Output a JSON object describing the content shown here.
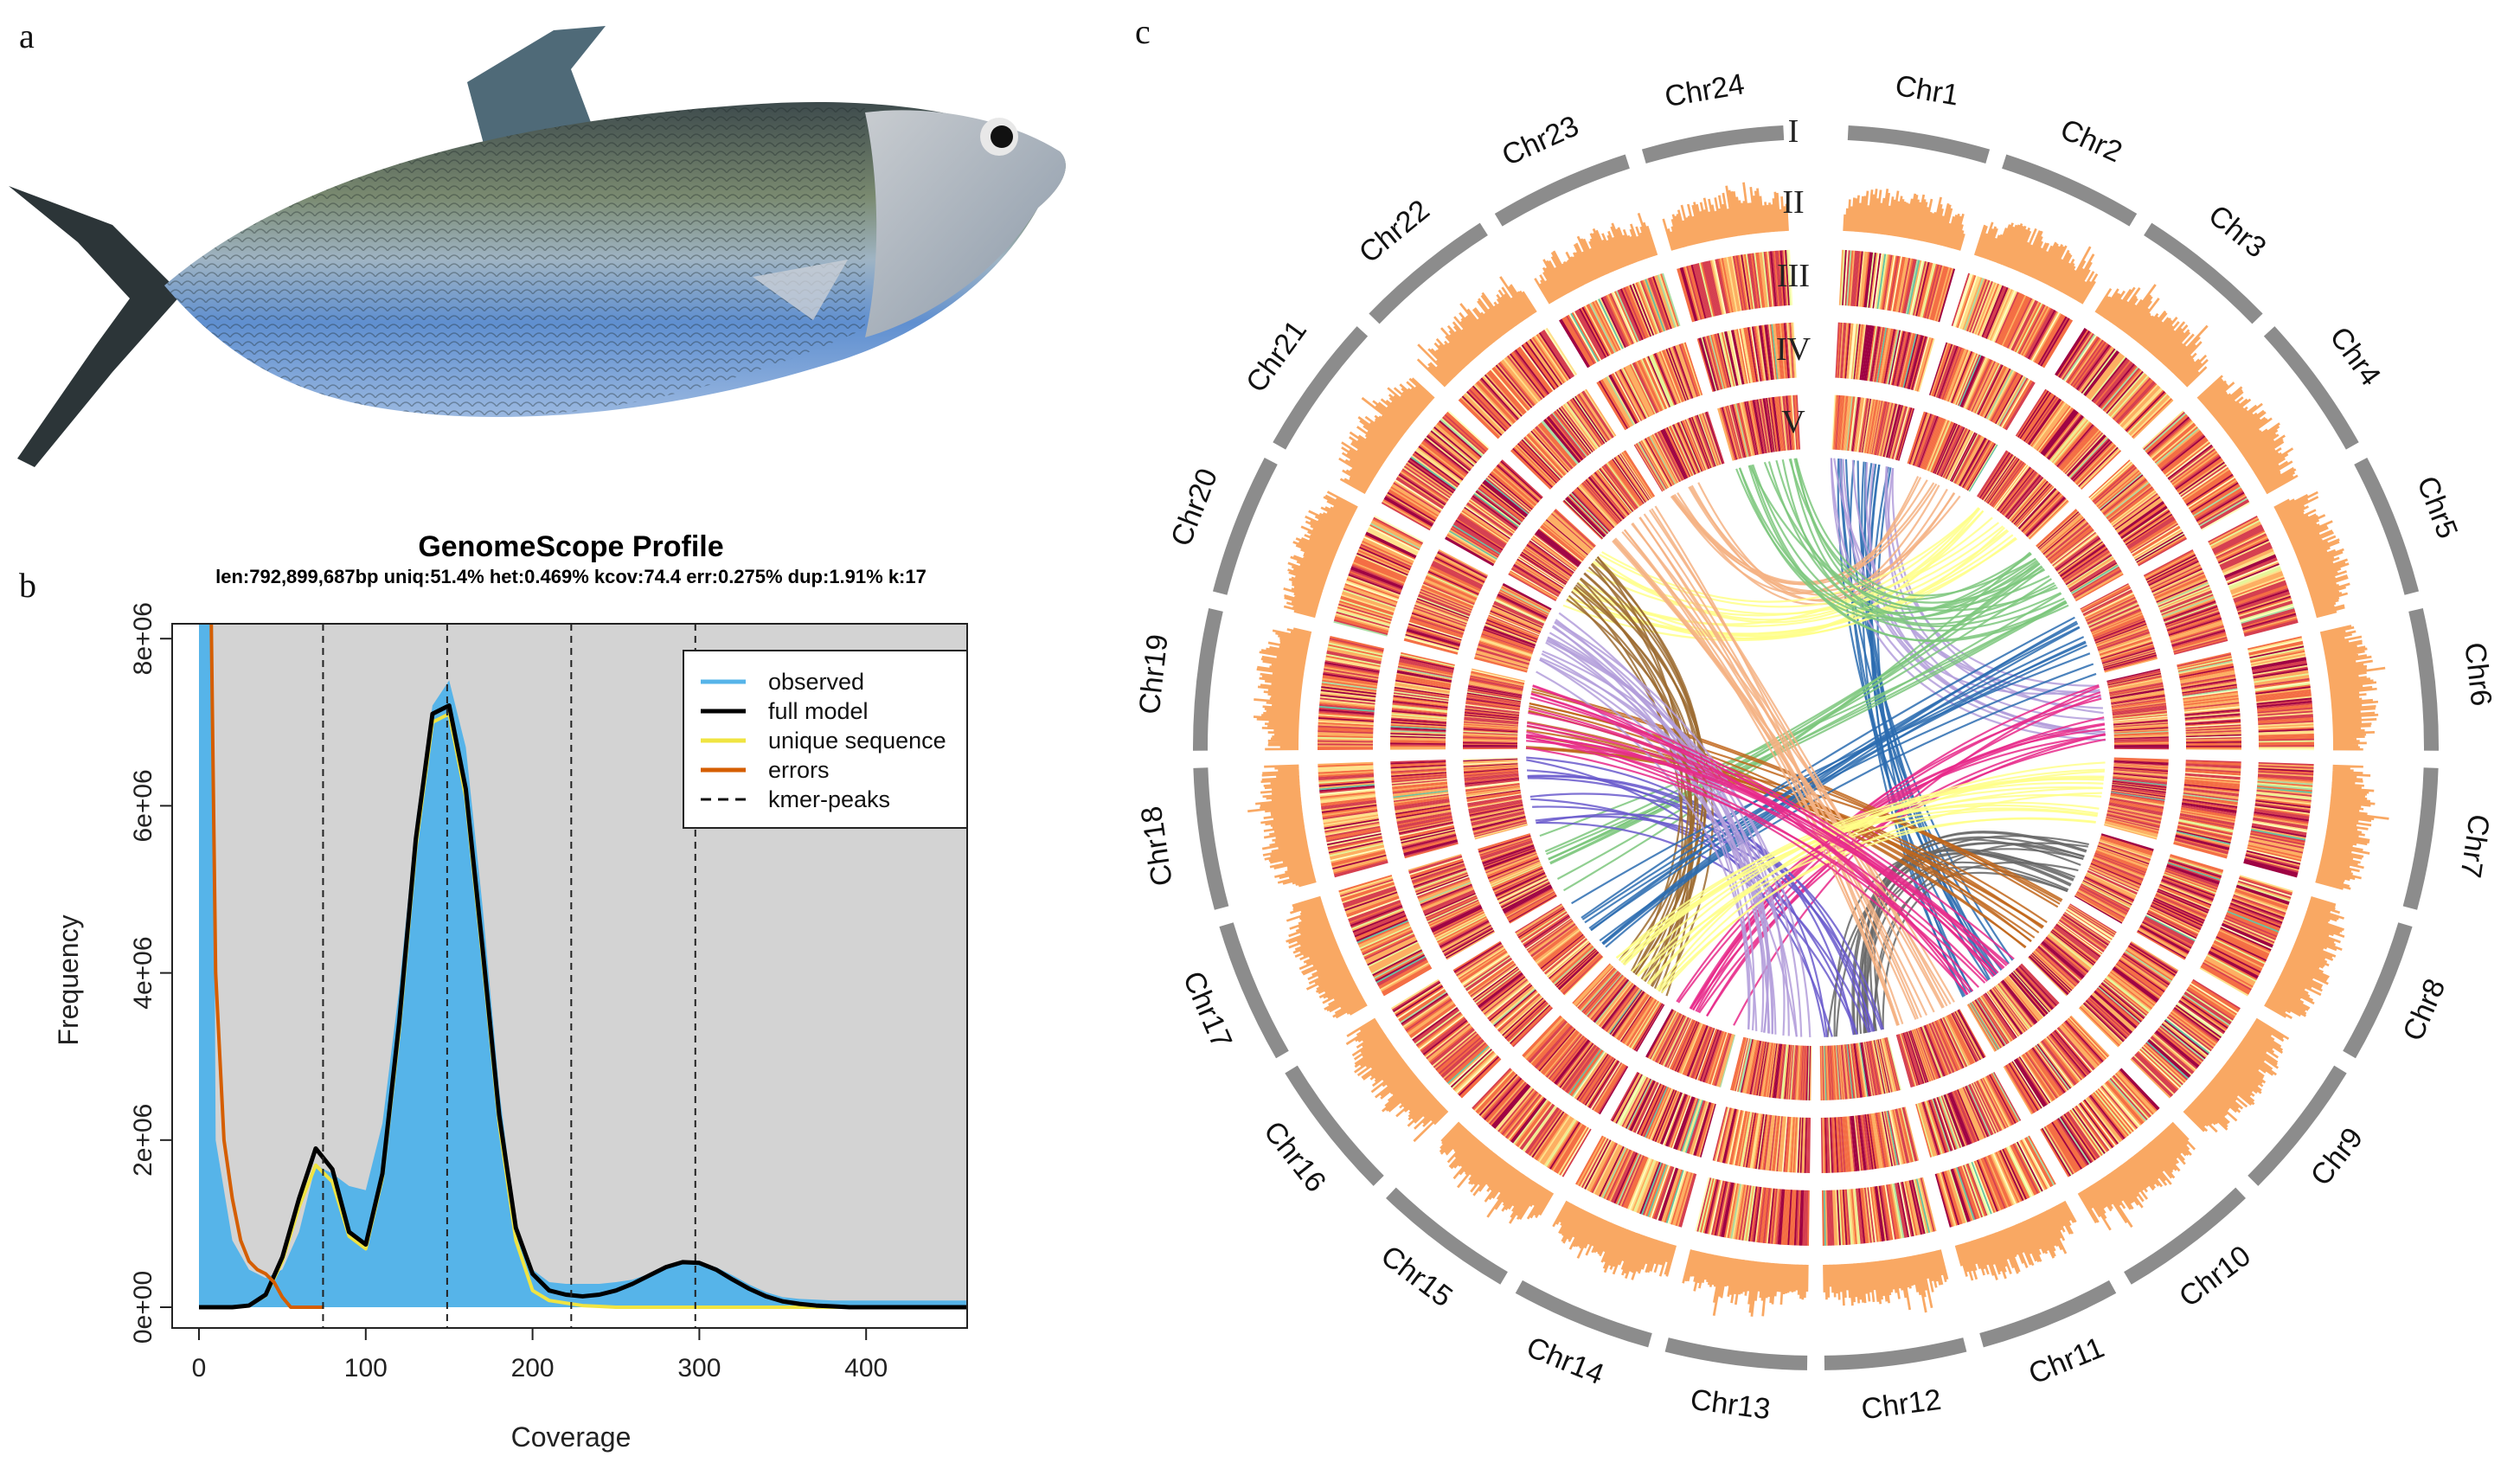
{
  "panels": {
    "a": "a",
    "b": "b",
    "c": "c"
  },
  "colors": {
    "observed": "#56b4e9",
    "full_model": "#000000",
    "unique": "#f0e442",
    "errors": "#d55e00",
    "plot_bg": "#d3d3d3",
    "histogram": "#f9a863",
    "chromosome_ring": "#8c8c8c",
    "heat_palette": [
      "#9e0142",
      "#d53e4f",
      "#f46d43",
      "#fdae61",
      "#fee08b",
      "#ffffbf",
      "#e6f598",
      "#abdda4",
      "#66c2a5"
    ],
    "link_palette": [
      "#2b6cb0",
      "#b39ddb",
      "#f4b183",
      "#ffff8a",
      "#7dc77d",
      "#e7298a",
      "#666666",
      "#c1661b",
      "#6a5acd",
      "#9c6b30"
    ]
  },
  "chart_data": {
    "type": "line",
    "title": "GenomeScope Profile",
    "subtitle": "len:792,899,687bp uniq:51.4%  het:0.469% kcov:74.4 err:0.275%  dup:1.91%  k:17",
    "xlabel": "Coverage",
    "ylabel": "Frequency",
    "xlim": [
      -18,
      463
    ],
    "ylim": [
      -500000.0,
      8600000.0
    ],
    "x_ticks": [
      "0",
      "100",
      "200",
      "300",
      "400"
    ],
    "x_tick_values": [
      0,
      100,
      200,
      300,
      400
    ],
    "y_ticks": [
      "0e+00",
      "2e+06",
      "4e+06",
      "6e+06",
      "8e+06"
    ],
    "y_tick_values": [
      0,
      2000000,
      4000000,
      6000000,
      8000000
    ],
    "grid": false,
    "legend_position": "top-right",
    "x": [
      0,
      10,
      20,
      30,
      40,
      50,
      60,
      70,
      80,
      90,
      100,
      110,
      120,
      130,
      140,
      150,
      160,
      170,
      180,
      190,
      200,
      210,
      220,
      230,
      240,
      250,
      260,
      270,
      280,
      290,
      300,
      310,
      320,
      330,
      340,
      350,
      360,
      370,
      380,
      390,
      400,
      410,
      420,
      430,
      440,
      450,
      460
    ],
    "series": [
      {
        "name": "observed",
        "style": "filled-area",
        "values_millions": [
          40,
          2.0,
          0.8,
          0.45,
          0.35,
          0.45,
          0.9,
          1.7,
          1.6,
          1.45,
          1.4,
          2.2,
          3.8,
          5.8,
          7.2,
          7.5,
          6.7,
          4.8,
          2.6,
          1.0,
          0.45,
          0.3,
          0.28,
          0.28,
          0.28,
          0.3,
          0.33,
          0.4,
          0.48,
          0.52,
          0.53,
          0.48,
          0.38,
          0.27,
          0.18,
          0.12,
          0.1,
          0.09,
          0.08,
          0.08,
          0.08,
          0.08,
          0.08,
          0.08,
          0.08,
          0.08,
          0.08
        ]
      },
      {
        "name": "full model",
        "values_millions": [
          0,
          0,
          0,
          0.02,
          0.15,
          0.6,
          1.3,
          1.9,
          1.65,
          0.9,
          0.75,
          1.6,
          3.4,
          5.6,
          7.1,
          7.2,
          6.2,
          4.3,
          2.3,
          0.95,
          0.4,
          0.2,
          0.15,
          0.13,
          0.15,
          0.2,
          0.28,
          0.38,
          0.48,
          0.54,
          0.53,
          0.45,
          0.33,
          0.22,
          0.13,
          0.07,
          0.04,
          0.02,
          0.01,
          0,
          0,
          0,
          0,
          0,
          0,
          0,
          0
        ]
      },
      {
        "name": "unique sequence",
        "values_millions": [
          0,
          0,
          0,
          0.02,
          0.14,
          0.55,
          1.2,
          1.7,
          1.5,
          0.85,
          0.7,
          1.55,
          3.3,
          5.5,
          7.0,
          7.1,
          6.1,
          4.2,
          2.2,
          0.8,
          0.2,
          0.08,
          0.05,
          0.02,
          0.01,
          0,
          0,
          0,
          0,
          0,
          0,
          0,
          0,
          0,
          0,
          0,
          0,
          0,
          0,
          0,
          0,
          0,
          0,
          0,
          0,
          0,
          0
        ]
      }
    ],
    "errors_series": {
      "name": "errors",
      "x": [
        0,
        5,
        10,
        15,
        20,
        25,
        30,
        35,
        40,
        45,
        50,
        55,
        60,
        75
      ],
      "values_millions": [
        40,
        12,
        4,
        2,
        1.3,
        0.8,
        0.55,
        0.45,
        0.4,
        0.3,
        0.12,
        0,
        0,
        0
      ]
    },
    "kmer_peaks": {
      "name": "kmer-peaks",
      "x": [
        74.4,
        148.8,
        223.2,
        297.6
      ]
    },
    "legend": [
      "observed",
      "full model",
      "unique sequence",
      "errors",
      "kmer-peaks"
    ]
  },
  "circos": {
    "track_labels": [
      "I",
      "II",
      "III",
      "IV",
      "V"
    ],
    "chromosomes": [
      "Chr1",
      "Chr2",
      "Chr3",
      "Chr4",
      "Chr5",
      "Chr6",
      "Chr7",
      "Chr8",
      "Chr9",
      "Chr10",
      "Chr11",
      "Chr12",
      "Chr13",
      "Chr14",
      "Chr15",
      "Chr16",
      "Chr17",
      "Chr18",
      "Chr19",
      "Chr20",
      "Chr21",
      "Chr22",
      "Chr23",
      "Chr24"
    ]
  }
}
